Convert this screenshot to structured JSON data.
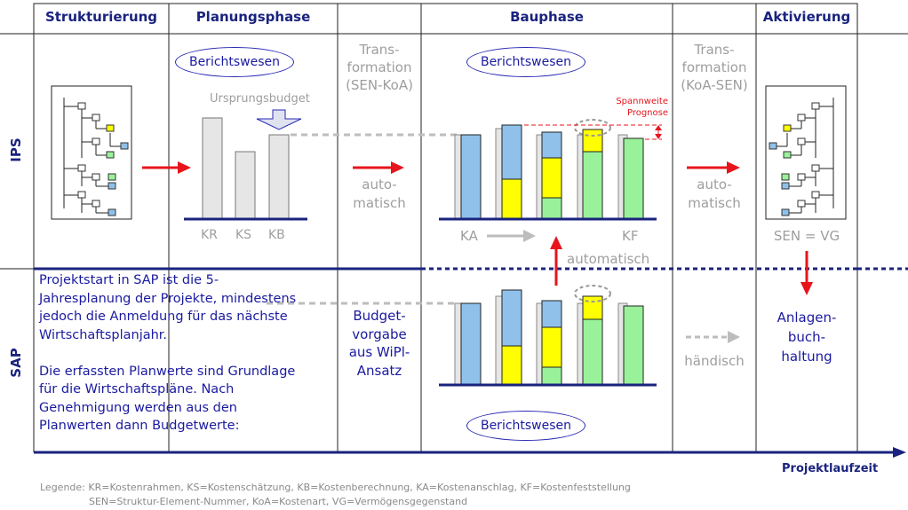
{
  "headers": {
    "structuring": "Strukturierung",
    "planning": "Planungsphase",
    "construction": "Bauphase",
    "activation": "Aktivierung"
  },
  "rows": {
    "ips": "IPS",
    "sap": "SAP"
  },
  "report_label": "Berichtswesen",
  "planning": {
    "origin_budget": "Ursprungsbudget",
    "bar_labels": [
      "KR",
      "KS",
      "KB"
    ]
  },
  "transformation1": [
    "Trans-",
    "formation",
    "(SEN-KoA)"
  ],
  "transformation2": [
    "Trans-",
    "formation",
    "(KoA-SEN)"
  ],
  "auto_lines": [
    "auto-",
    "matisch"
  ],
  "automatic": "automatisch",
  "construction": {
    "range_label": [
      "Spannweite",
      "Prognose"
    ],
    "ka": "KA",
    "kf": "KF"
  },
  "activation": {
    "sen_vg": "SEN = VG",
    "asset": [
      "Anlagen-",
      "buch-",
      "haltung"
    ]
  },
  "sap_text": [
    "Projektstart in SAP ist die 5-",
    "Jahresplanung der Projekte, mindestens",
    "jedoch die Anmeldung für das nächste",
    "Wirtschaftsplanjahr.",
    "",
    "Die erfassten Planwerte sind Grundlage",
    "für die Wirtschaftspläne. Nach",
    "Genehmigung werden aus den",
    "Planwerten dann Budgetwerte:"
  ],
  "budget_spec": [
    "Budget-",
    "vorgabe",
    "aus WiPl-",
    "Ansatz"
  ],
  "manual": "händisch",
  "timeline_label": "Projektlaufzeit",
  "legend": [
    "Legende: KR=Kostenrahmen, KS=Kostenschätzung, KB=Kostenberechnung, KA=Kostenanschlag, KF=Kostenfeststellung",
    "SEN=Struktur-Element-Nummer, KoA=Kostenart, VG=Vermögensgegenstand"
  ],
  "colors": {
    "navy": "#1a237e",
    "red": "#e8141c",
    "blue_bar": "#8fc1ea",
    "yellow_bar": "#ffff00",
    "green_bar": "#99f29a",
    "gray_bar": "#e6e6e6"
  }
}
